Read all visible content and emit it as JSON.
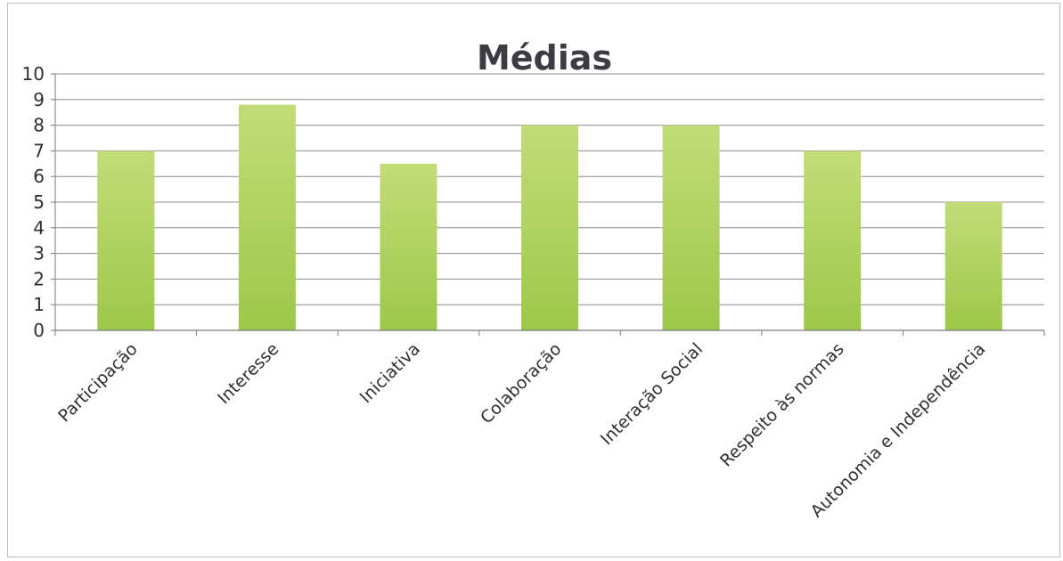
{
  "chart_data": {
    "type": "bar",
    "title": "Médias",
    "xlabel": "",
    "ylabel": "",
    "categories": [
      "Participação",
      "Interesse",
      "Iniciativa",
      "Colaboração",
      "Interação Social",
      "Respeito às normas",
      "Autonomia e Independência"
    ],
    "values": [
      7.0,
      8.8,
      6.5,
      8.0,
      8.0,
      7.0,
      5.0
    ],
    "ylim": [
      0,
      10
    ],
    "yticks": [
      "0",
      "1",
      "2",
      "3",
      "4",
      "5",
      "6",
      "7",
      "8",
      "9",
      "10"
    ],
    "grid": true,
    "legend": "none",
    "colors": {
      "bar_top": "#c2dc78",
      "bar_bottom": "#9cc848",
      "grid": "#8c8c8c",
      "axis": "#7a7a7a"
    }
  }
}
